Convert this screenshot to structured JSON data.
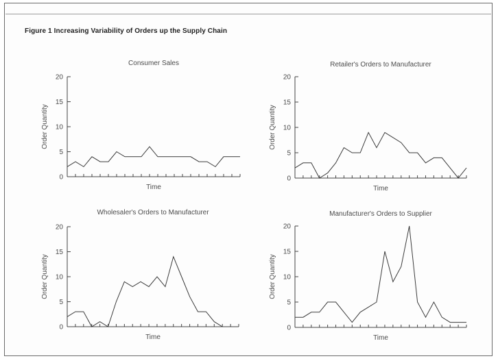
{
  "figure": {
    "title": "Figure 1   Increasing Variability of Orders up the Supply Chain"
  },
  "chart_data": [
    {
      "type": "line",
      "title": "Consumer Sales",
      "xlabel": "Time",
      "ylabel": "Order Quantity",
      "ylim": [
        0,
        20
      ],
      "yticks": [
        "0",
        "5",
        "10",
        "15",
        "20"
      ],
      "y": [
        2,
        3,
        2,
        4,
        3,
        3,
        5,
        4,
        4,
        4,
        6,
        4,
        4,
        4,
        4,
        4,
        3,
        3,
        2,
        4,
        4,
        4
      ]
    },
    {
      "type": "line",
      "title": "Retailer's Orders to Manufacturer",
      "xlabel": "Time",
      "ylabel": "Order Quantity",
      "ylim": [
        0,
        20
      ],
      "yticks": [
        "0",
        "5",
        "10",
        "15",
        "20"
      ],
      "y": [
        2,
        3,
        3,
        0,
        1,
        3,
        6,
        5,
        5,
        9,
        6,
        9,
        8,
        7,
        5,
        5,
        3,
        4,
        4,
        2,
        0,
        2
      ]
    },
    {
      "type": "line",
      "title": "Wholesaler's Orders to Manufacturer",
      "xlabel": "Time",
      "ylabel": "Order Quantity",
      "ylim": [
        0,
        20
      ],
      "yticks": [
        "0",
        "5",
        "10",
        "15",
        "20"
      ],
      "y": [
        2,
        3,
        3,
        0,
        1,
        0,
        5,
        9,
        8,
        9,
        8,
        10,
        8,
        14,
        10,
        6,
        3,
        3,
        1,
        0,
        0,
        0
      ]
    },
    {
      "type": "line",
      "title": "Manufacturer's Orders to Supplier",
      "xlabel": "Time",
      "ylabel": "Order Quantity",
      "ylim": [
        0,
        20
      ],
      "yticks": [
        "0",
        "5",
        "10",
        "15",
        "20"
      ],
      "y": [
        2,
        2,
        3,
        3,
        5,
        5,
        3,
        1,
        3,
        4,
        5,
        15,
        9,
        12,
        20,
        5,
        2,
        5,
        2,
        1,
        1,
        1
      ]
    }
  ]
}
